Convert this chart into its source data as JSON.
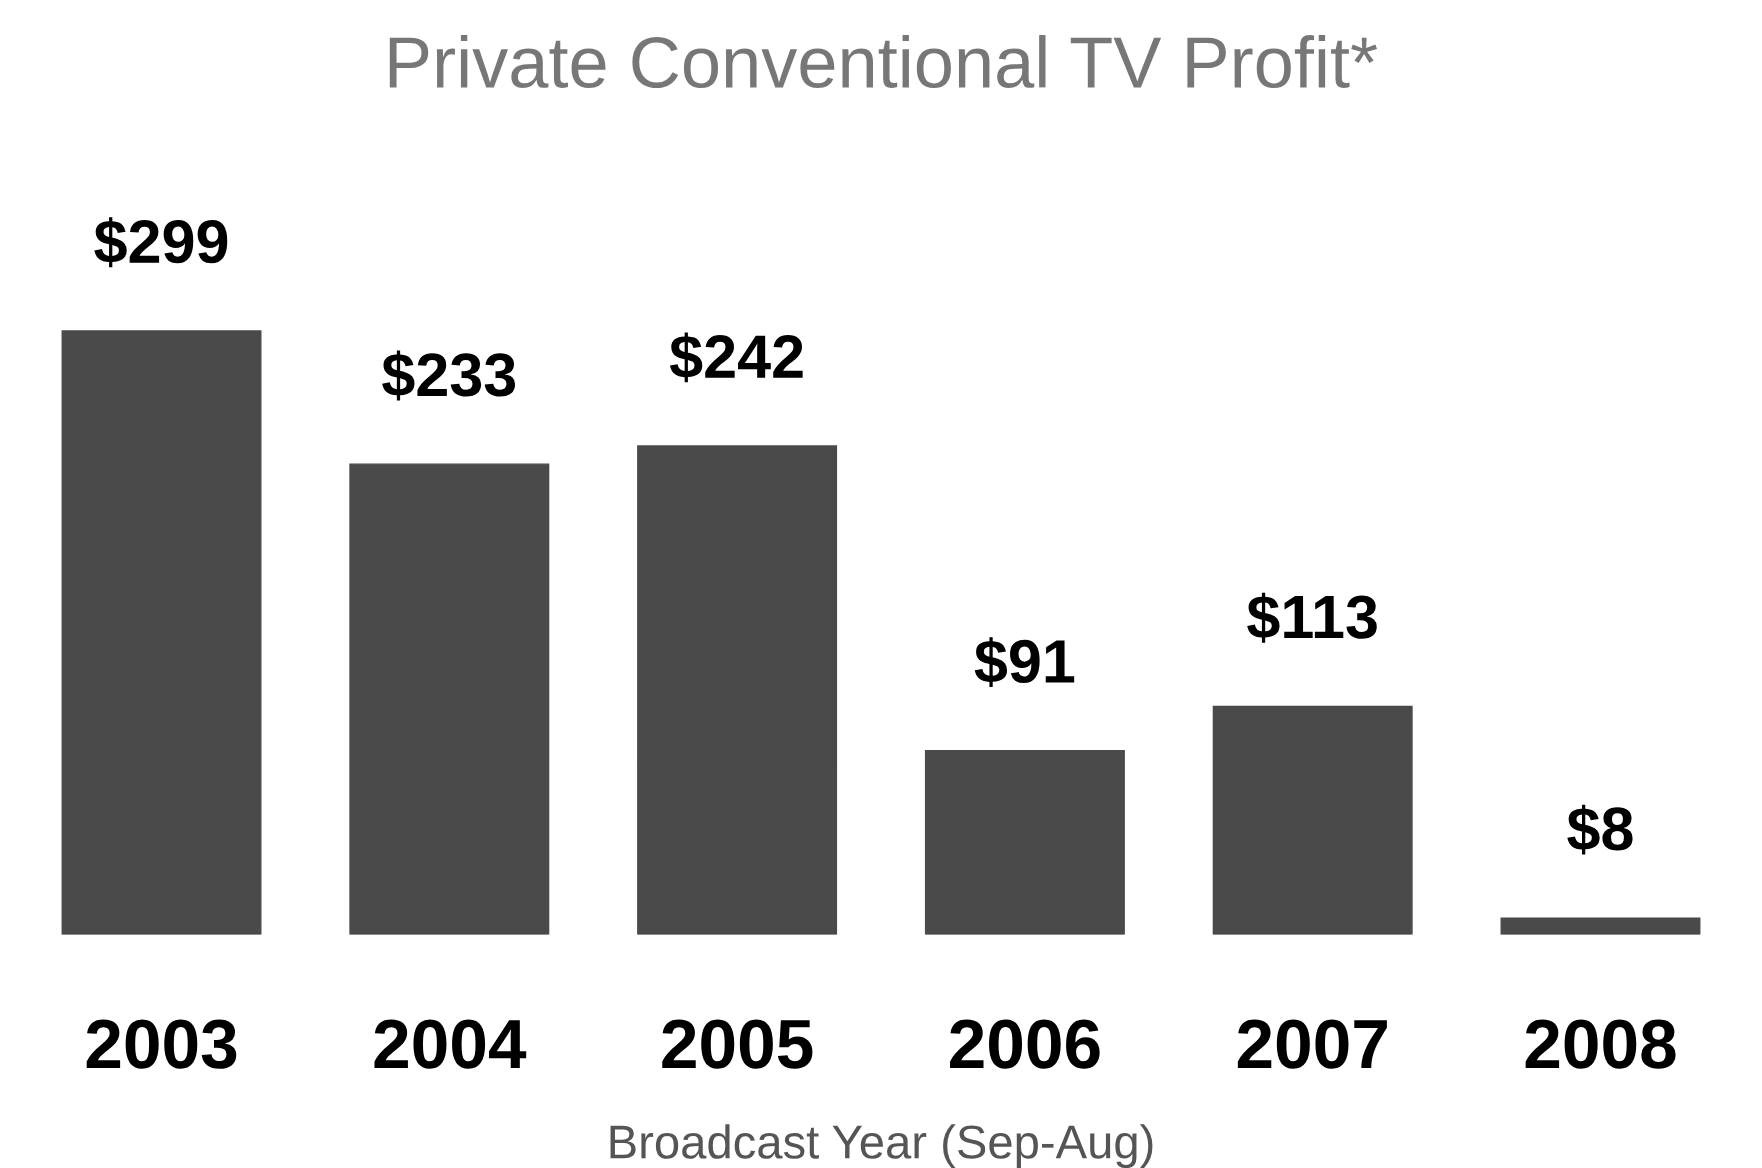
{
  "chart_data": {
    "type": "bar",
    "title": "Private Conventional TV Profit*",
    "xlabel": "Broadcast Year (Sep-Aug)",
    "categories": [
      "2003",
      "2004",
      "2005",
      "2006",
      "2007",
      "2008"
    ],
    "values": [
      299,
      233,
      242,
      91,
      113,
      8
    ],
    "value_labels": [
      "$299",
      "$233",
      "$242",
      "$91",
      "$113",
      "$8"
    ],
    "color": "#4a4a4a",
    "tick_labels": "x",
    "grid": false
  }
}
